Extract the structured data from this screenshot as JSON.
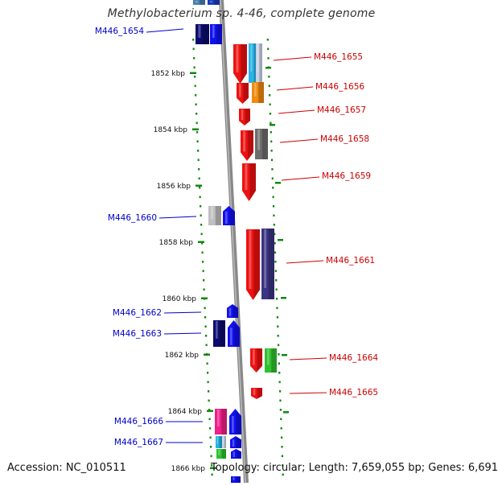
{
  "title": "Methylobacterium sp. 4-46, complete genome",
  "accession_label": "Accession: NC_010511",
  "topology_label": "Topology: circular; Length: 7,659,055 bp; Genes: 6,691",
  "colors": {
    "backbone": "#888888",
    "left_label": "#0000cc",
    "right_label": "#cc0000",
    "dots": "#118811"
  },
  "ruler": [
    {
      "kbp": 1852,
      "label": "1852 kbp"
    },
    {
      "kbp": 1854,
      "label": "1854 kbp"
    },
    {
      "kbp": 1856,
      "label": "1856 kbp"
    },
    {
      "kbp": 1858,
      "label": "1858 kbp"
    },
    {
      "kbp": 1860,
      "label": "1860 kbp"
    },
    {
      "kbp": 1862,
      "label": "1862 kbp"
    },
    {
      "kbp": 1864,
      "label": "1864 kbp"
    },
    {
      "kbp": 1866,
      "label": "1866 kbp"
    }
  ],
  "genes_left": [
    {
      "label": "M446_1654"
    },
    {
      "label": "M446_1660"
    },
    {
      "label": "M446_1662"
    },
    {
      "label": "M446_1663"
    },
    {
      "label": "M446_1666"
    },
    {
      "label": "M446_1667"
    }
  ],
  "genes_right": [
    {
      "label": "M446_1655"
    },
    {
      "label": "M446_1656"
    },
    {
      "label": "M446_1657"
    },
    {
      "label": "M446_1658"
    },
    {
      "label": "M446_1659"
    },
    {
      "label": "M446_1661"
    },
    {
      "label": "M446_1664"
    },
    {
      "label": "M446_1665"
    }
  ]
}
